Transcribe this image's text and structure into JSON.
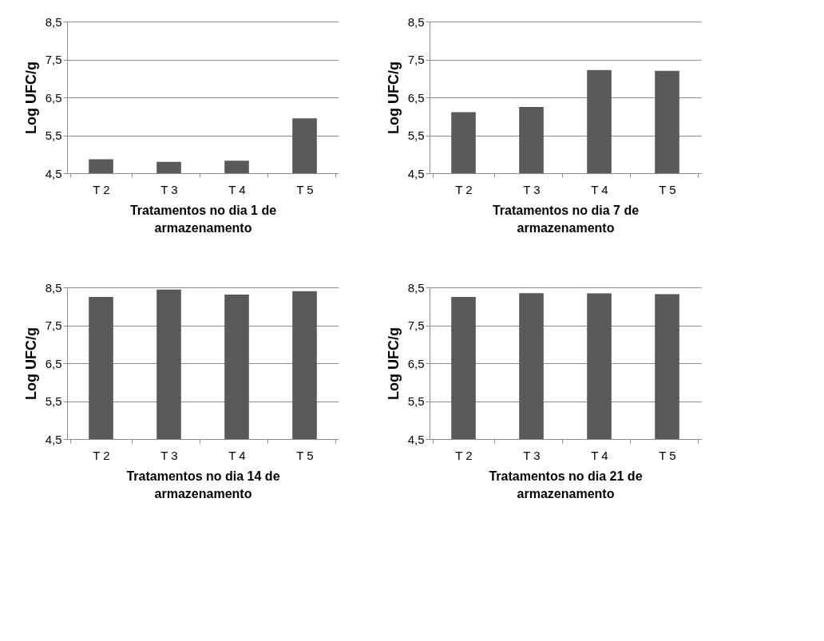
{
  "chart_data": [
    {
      "type": "bar",
      "categories": [
        "T 2",
        "T 3",
        "T 4",
        "T 5"
      ],
      "values": [
        4.87,
        4.8,
        4.83,
        5.95
      ],
      "color": "#595959",
      "xlabel": "Tratamentos no dia 1 de armazenamento",
      "ylabel": "Log UFC/g",
      "ylim": [
        4.5,
        8.5
      ],
      "yticks": [
        {
          "value": 4.5,
          "label": "4,5"
        },
        {
          "value": 5.5,
          "label": "5,5"
        },
        {
          "value": 6.5,
          "label": "6,5"
        },
        {
          "value": 7.5,
          "label": "7,5"
        },
        {
          "value": 8.5,
          "label": "8,5"
        }
      ],
      "grid": "y"
    },
    {
      "type": "bar",
      "categories": [
        "T 2",
        "T 3",
        "T 4",
        "T 5"
      ],
      "values": [
        6.11,
        6.25,
        7.22,
        7.2
      ],
      "color": "#595959",
      "xlabel": "Tratamentos no dia 7 de armazenamento",
      "ylabel": "Log UFC/g",
      "ylim": [
        4.5,
        8.5
      ],
      "yticks": [
        {
          "value": 4.5,
          "label": "4,5"
        },
        {
          "value": 5.5,
          "label": "5,5"
        },
        {
          "value": 6.5,
          "label": "6,5"
        },
        {
          "value": 7.5,
          "label": "7,5"
        },
        {
          "value": 8.5,
          "label": "8,5"
        }
      ],
      "grid": "y"
    },
    {
      "type": "bar",
      "categories": [
        "T 2",
        "T 3",
        "T 4",
        "T 5"
      ],
      "values": [
        8.25,
        8.44,
        8.31,
        8.4
      ],
      "color": "#595959",
      "xlabel": "Tratamentos no dia 14 de armazenamento",
      "ylabel": "Log UFC/g",
      "ylim": [
        4.5,
        8.5
      ],
      "yticks": [
        {
          "value": 4.5,
          "label": "4,5"
        },
        {
          "value": 5.5,
          "label": "5,5"
        },
        {
          "value": 6.5,
          "label": "6,5"
        },
        {
          "value": 7.5,
          "label": "7,5"
        },
        {
          "value": 8.5,
          "label": "8,5"
        }
      ],
      "grid": "y"
    },
    {
      "type": "bar",
      "categories": [
        "T 2",
        "T 3",
        "T 4",
        "T 5"
      ],
      "values": [
        8.25,
        8.35,
        8.34,
        8.32
      ],
      "color": "#595959",
      "xlabel": "Tratamentos no dia 21 de armazenamento",
      "ylabel": "Log UFC/g",
      "ylim": [
        4.5,
        8.5
      ],
      "yticks": [
        {
          "value": 4.5,
          "label": "4,5"
        },
        {
          "value": 5.5,
          "label": "5,5"
        },
        {
          "value": 6.5,
          "label": "6,5"
        },
        {
          "value": 7.5,
          "label": "7,5"
        },
        {
          "value": 8.5,
          "label": "8,5"
        }
      ],
      "grid": "y"
    }
  ]
}
